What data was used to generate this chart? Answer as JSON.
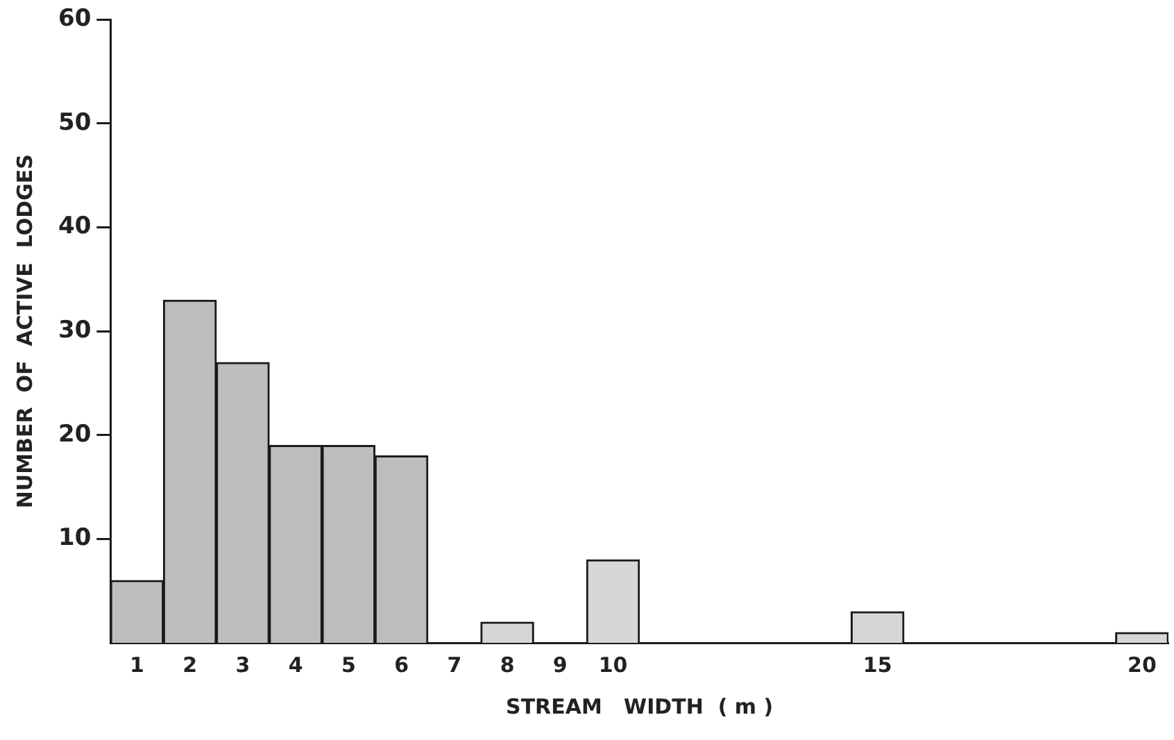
{
  "chart_data": {
    "type": "bar",
    "xlabel": "STREAM   WIDTH  ( m )",
    "ylabel": "NUMBER  OF  ACTIVE  LODGES",
    "categories": [
      "1",
      "2",
      "3",
      "4",
      "5",
      "6",
      "7",
      "8",
      "9",
      "10",
      null,
      null,
      null,
      null,
      "15",
      null,
      null,
      null,
      null,
      "20"
    ],
    "values": [
      6,
      33,
      27,
      19,
      19,
      18,
      0,
      2,
      0,
      8,
      null,
      null,
      null,
      null,
      3,
      null,
      null,
      null,
      null,
      1
    ],
    "colors": [
      "#bdbdbd",
      "#bdbdbd",
      "#bdbdbd",
      "#bdbdbd",
      "#bdbdbd",
      "#bdbdbd",
      "#bdbdbd",
      "#d6d6d6",
      "#d6d6d6",
      "#d6d6d6",
      "#d6d6d6",
      "#d6d6d6",
      "#d6d6d6",
      "#d6d6d6",
      "#d6d6d6",
      "#d6d6d6",
      "#d6d6d6",
      "#d6d6d6",
      "#d6d6d6",
      "#d6d6d6"
    ],
    "ylim": [
      0,
      60
    ],
    "yticks": [
      10,
      20,
      30,
      40,
      50,
      60
    ],
    "grid": false,
    "legend": false
  }
}
